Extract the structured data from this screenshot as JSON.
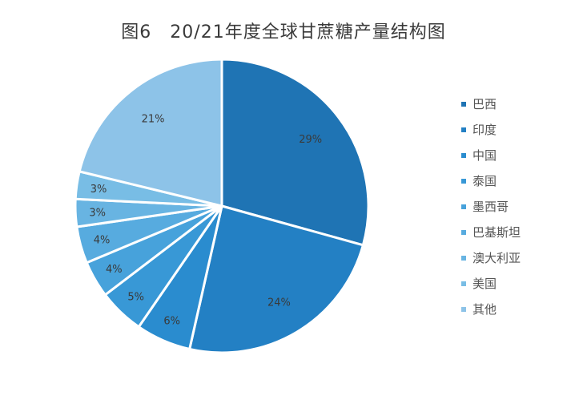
{
  "chart_data": {
    "type": "pie",
    "title": "图6　20/21年度全球甘蔗糖产量结构图",
    "start_angle": "12 o'clock",
    "direction": "clockwise",
    "legend_position": "right",
    "slices": [
      {
        "label": "巴西",
        "value": 29,
        "value_label": "29%",
        "color": "#1f74b4"
      },
      {
        "label": "印度",
        "value": 24,
        "value_label": "24%",
        "color": "#2380c4"
      },
      {
        "label": "中国",
        "value": 6,
        "value_label": "6%",
        "color": "#2a8ccf"
      },
      {
        "label": "泰国",
        "value": 5,
        "value_label": "5%",
        "color": "#3898d6"
      },
      {
        "label": "墨西哥",
        "value": 4,
        "value_label": "4%",
        "color": "#47a2db"
      },
      {
        "label": "巴基斯坦",
        "value": 4,
        "value_label": "4%",
        "color": "#57abdf"
      },
      {
        "label": "澳大利亚",
        "value": 3,
        "value_label": "3%",
        "color": "#68b4e2"
      },
      {
        "label": "美国",
        "value": 3,
        "value_label": "3%",
        "color": "#78bde5"
      },
      {
        "label": "其他",
        "value": 21,
        "value_label": "21%",
        "color": "#8dc3e8"
      }
    ]
  }
}
